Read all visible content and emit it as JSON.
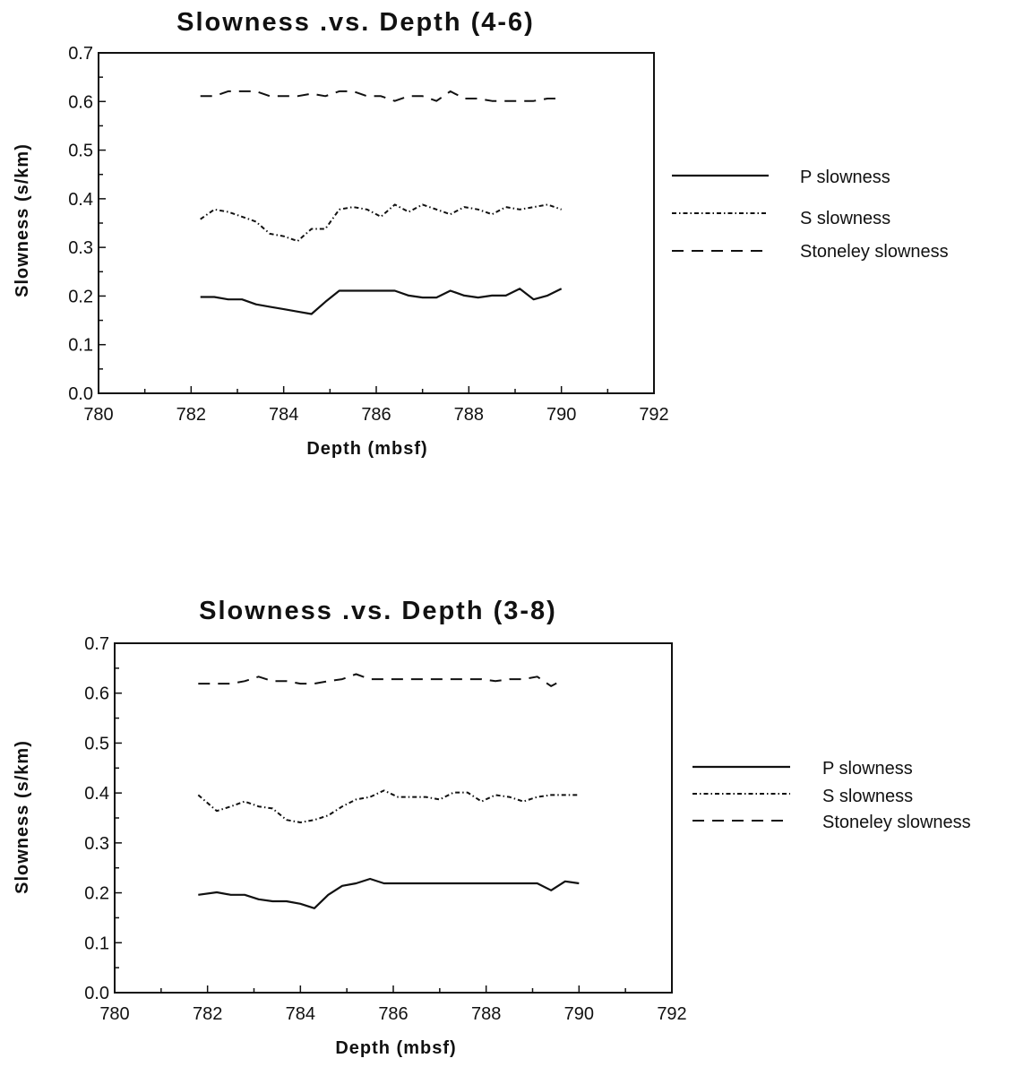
{
  "charts": [
    {
      "title": "Slowness .vs. Depth (4-6)",
      "xlabel": "Depth (mbsf)",
      "ylabel": "Slowness (s/km)",
      "xticks": [
        "780",
        "782",
        "784",
        "786",
        "788",
        "790",
        "792"
      ],
      "yticks": [
        "0.0",
        "0.1",
        "0.2",
        "0.3",
        "0.4",
        "0.5",
        "0.6",
        "0.7"
      ],
      "legend": [
        "P slowness",
        "S slowness",
        "Stoneley slowness"
      ]
    },
    {
      "title": "Slowness .vs. Depth (3-8)",
      "xlabel": "Depth (mbsf)",
      "ylabel": "Slowness (s/km)",
      "xticks": [
        "780",
        "782",
        "784",
        "786",
        "788",
        "790",
        "792"
      ],
      "yticks": [
        "0.0",
        "0.1",
        "0.2",
        "0.3",
        "0.4",
        "0.5",
        "0.6",
        "0.7"
      ],
      "legend": [
        "P slowness",
        "S slowness",
        "Stoneley slowness"
      ]
    }
  ],
  "chart_data": [
    {
      "type": "line",
      "title": "Slowness .vs. Depth (4-6)",
      "xlabel": "Depth (mbsf)",
      "ylabel": "Slowness (s/km)",
      "xlim": [
        780,
        792
      ],
      "ylim": [
        0.0,
        0.7
      ],
      "grid": false,
      "legend_position": "right",
      "series": [
        {
          "name": "P slowness",
          "style": "solid",
          "x": [
            782.2,
            782.5,
            782.8,
            783.1,
            783.4,
            783.7,
            784.0,
            784.3,
            784.6,
            784.9,
            785.2,
            785.5,
            785.8,
            786.1,
            786.4,
            786.7,
            787.0,
            787.3,
            787.6,
            787.9,
            788.2,
            788.5,
            788.8,
            789.1,
            789.4,
            789.7,
            790.0
          ],
          "y": [
            0.198,
            0.198,
            0.193,
            0.193,
            0.183,
            0.178,
            0.173,
            0.168,
            0.163,
            0.188,
            0.211,
            0.211,
            0.211,
            0.211,
            0.211,
            0.201,
            0.197,
            0.197,
            0.211,
            0.201,
            0.197,
            0.201,
            0.201,
            0.215,
            0.193,
            0.201,
            0.215
          ]
        },
        {
          "name": "S slowness",
          "style": "dash-dot",
          "x": [
            782.2,
            782.5,
            782.8,
            783.1,
            783.4,
            783.7,
            784.0,
            784.3,
            784.6,
            784.9,
            785.2,
            785.5,
            785.8,
            786.1,
            786.4,
            786.7,
            787.0,
            787.3,
            787.6,
            787.9,
            788.2,
            788.5,
            788.8,
            789.1,
            789.4,
            789.7,
            790.0
          ],
          "y": [
            0.358,
            0.378,
            0.373,
            0.363,
            0.353,
            0.328,
            0.323,
            0.313,
            0.338,
            0.338,
            0.378,
            0.383,
            0.378,
            0.363,
            0.388,
            0.373,
            0.388,
            0.378,
            0.368,
            0.383,
            0.378,
            0.368,
            0.383,
            0.378,
            0.383,
            0.388,
            0.378
          ]
        },
        {
          "name": "Stoneley slowness",
          "style": "dashed",
          "x": [
            782.2,
            782.5,
            782.8,
            783.1,
            783.4,
            783.7,
            784.0,
            784.3,
            784.6,
            784.9,
            785.2,
            785.5,
            785.8,
            786.1,
            786.4,
            786.7,
            787.0,
            787.3,
            787.6,
            787.9,
            788.2,
            788.5,
            788.8,
            789.1,
            789.4,
            789.7,
            790.0
          ],
          "y": [
            0.611,
            0.611,
            0.621,
            0.621,
            0.621,
            0.611,
            0.611,
            0.611,
            0.616,
            0.611,
            0.621,
            0.621,
            0.611,
            0.611,
            0.601,
            0.611,
            0.611,
            0.601,
            0.621,
            0.606,
            0.606,
            0.601,
            0.601,
            0.601,
            0.601,
            0.606,
            0.606
          ]
        }
      ]
    },
    {
      "type": "line",
      "title": "Slowness .vs. Depth (3-8)",
      "xlabel": "Depth (mbsf)",
      "ylabel": "Slowness (s/km)",
      "xlim": [
        780,
        792
      ],
      "ylim": [
        0.0,
        0.7
      ],
      "grid": false,
      "legend_position": "right",
      "series": [
        {
          "name": "P slowness",
          "style": "solid",
          "x": [
            781.8,
            782.2,
            782.5,
            782.8,
            783.1,
            783.4,
            783.7,
            784.0,
            784.3,
            784.6,
            784.9,
            785.2,
            785.5,
            785.8,
            786.1,
            786.4,
            786.7,
            787.0,
            787.3,
            787.6,
            787.9,
            788.2,
            788.5,
            788.8,
            789.1,
            789.4,
            789.7,
            790.0
          ],
          "y": [
            0.196,
            0.201,
            0.196,
            0.196,
            0.187,
            0.183,
            0.183,
            0.178,
            0.169,
            0.196,
            0.214,
            0.219,
            0.228,
            0.219,
            0.219,
            0.219,
            0.219,
            0.219,
            0.219,
            0.219,
            0.219,
            0.219,
            0.219,
            0.219,
            0.219,
            0.205,
            0.223,
            0.219
          ]
        },
        {
          "name": "S slowness",
          "style": "dash-dot",
          "x": [
            781.8,
            782.2,
            782.5,
            782.8,
            783.1,
            783.4,
            783.7,
            784.0,
            784.3,
            784.6,
            784.9,
            785.2,
            785.5,
            785.8,
            786.1,
            786.4,
            786.7,
            787.0,
            787.3,
            787.6,
            787.9,
            788.2,
            788.5,
            788.8,
            789.1,
            789.4,
            789.7,
            790.0
          ],
          "y": [
            0.396,
            0.364,
            0.373,
            0.383,
            0.373,
            0.369,
            0.346,
            0.341,
            0.346,
            0.355,
            0.373,
            0.387,
            0.392,
            0.405,
            0.392,
            0.392,
            0.392,
            0.387,
            0.401,
            0.401,
            0.383,
            0.396,
            0.392,
            0.383,
            0.392,
            0.396,
            0.396,
            0.396
          ]
        },
        {
          "name": "Stoneley slowness",
          "style": "dashed",
          "x": [
            781.8,
            782.2,
            782.5,
            782.8,
            783.1,
            783.4,
            783.7,
            784.0,
            784.3,
            784.6,
            784.9,
            785.2,
            785.5,
            785.8,
            786.1,
            786.4,
            786.7,
            787.0,
            787.3,
            787.6,
            787.9,
            788.2,
            788.5,
            788.8,
            789.1,
            789.4,
            789.6
          ],
          "y": [
            0.619,
            0.619,
            0.619,
            0.624,
            0.633,
            0.624,
            0.624,
            0.619,
            0.619,
            0.624,
            0.628,
            0.638,
            0.628,
            0.628,
            0.628,
            0.628,
            0.628,
            0.628,
            0.628,
            0.628,
            0.628,
            0.624,
            0.628,
            0.628,
            0.633,
            0.614,
            0.624
          ]
        }
      ]
    }
  ]
}
